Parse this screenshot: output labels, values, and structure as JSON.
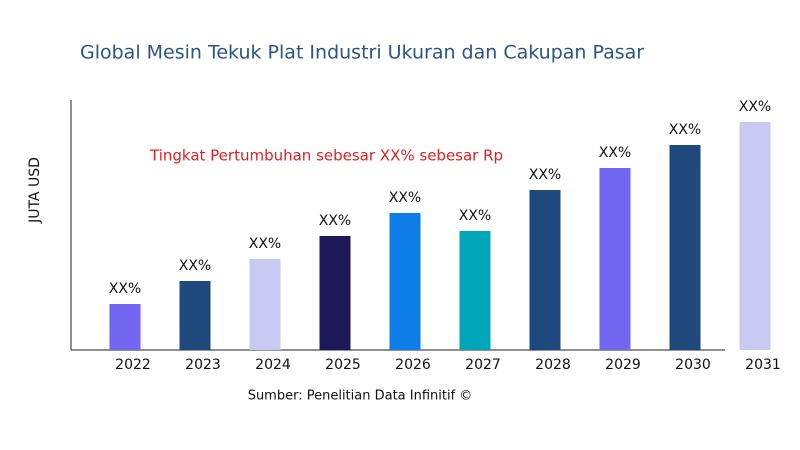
{
  "chart_data": {
    "type": "bar",
    "title": "Global Mesin Tekuk Plat Industri Ukuran dan Cakupan Pasar",
    "y_label": "JUTA USD",
    "annotation": "Tingkat Pertumbuhan sebesar XX% sebesar Rp",
    "source": "Sumber: Penelitian Data Infinitif ©",
    "categories": [
      "2022",
      "2023",
      "2024",
      "2025",
      "2026",
      "2027",
      "2028",
      "2029",
      "2030",
      "2031"
    ],
    "values": [
      46,
      69,
      91,
      114,
      137,
      119,
      160,
      182,
      205,
      228
    ],
    "value_labels": [
      "XX%",
      "XX%",
      "XX%",
      "XX%",
      "XX%",
      "XX%",
      "XX%",
      "XX%",
      "XX%",
      "XX%"
    ],
    "colors": [
      "#7266f0",
      "#1f497d",
      "#c8c8f0",
      "#1e1a5a",
      "#0f7de8",
      "#00a5b8",
      "#1f497d",
      "#7266f0",
      "#1f497d",
      "#c8c8f0"
    ],
    "ylim": [
      0,
      250
    ]
  }
}
